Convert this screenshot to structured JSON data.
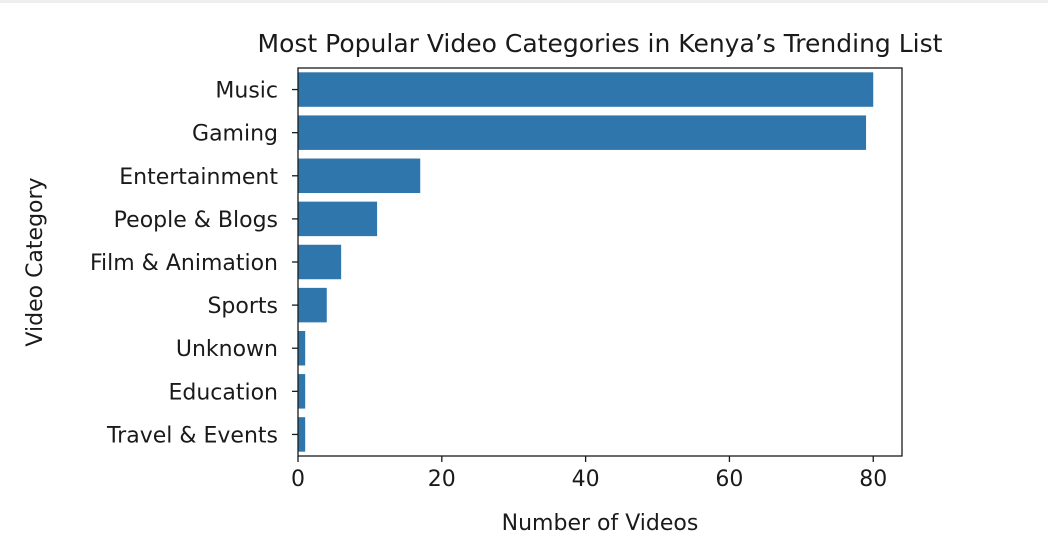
{
  "chart_data": {
    "type": "bar",
    "orientation": "horizontal",
    "title": "Most Popular Video Categories in Kenya’s Trending List",
    "xlabel": "Number of Videos",
    "ylabel": "Video Category",
    "categories": [
      "Music",
      "Gaming",
      "Entertainment",
      "People & Blogs",
      "Film & Animation",
      "Sports",
      "Unknown",
      "Education",
      "Travel & Events"
    ],
    "values": [
      80,
      79,
      17,
      11,
      6,
      4,
      1,
      1,
      1
    ],
    "xlim": [
      0,
      84
    ],
    "xticks": [
      0,
      20,
      40,
      60,
      80
    ],
    "grid": false,
    "bar_color": "#2f76ac"
  }
}
